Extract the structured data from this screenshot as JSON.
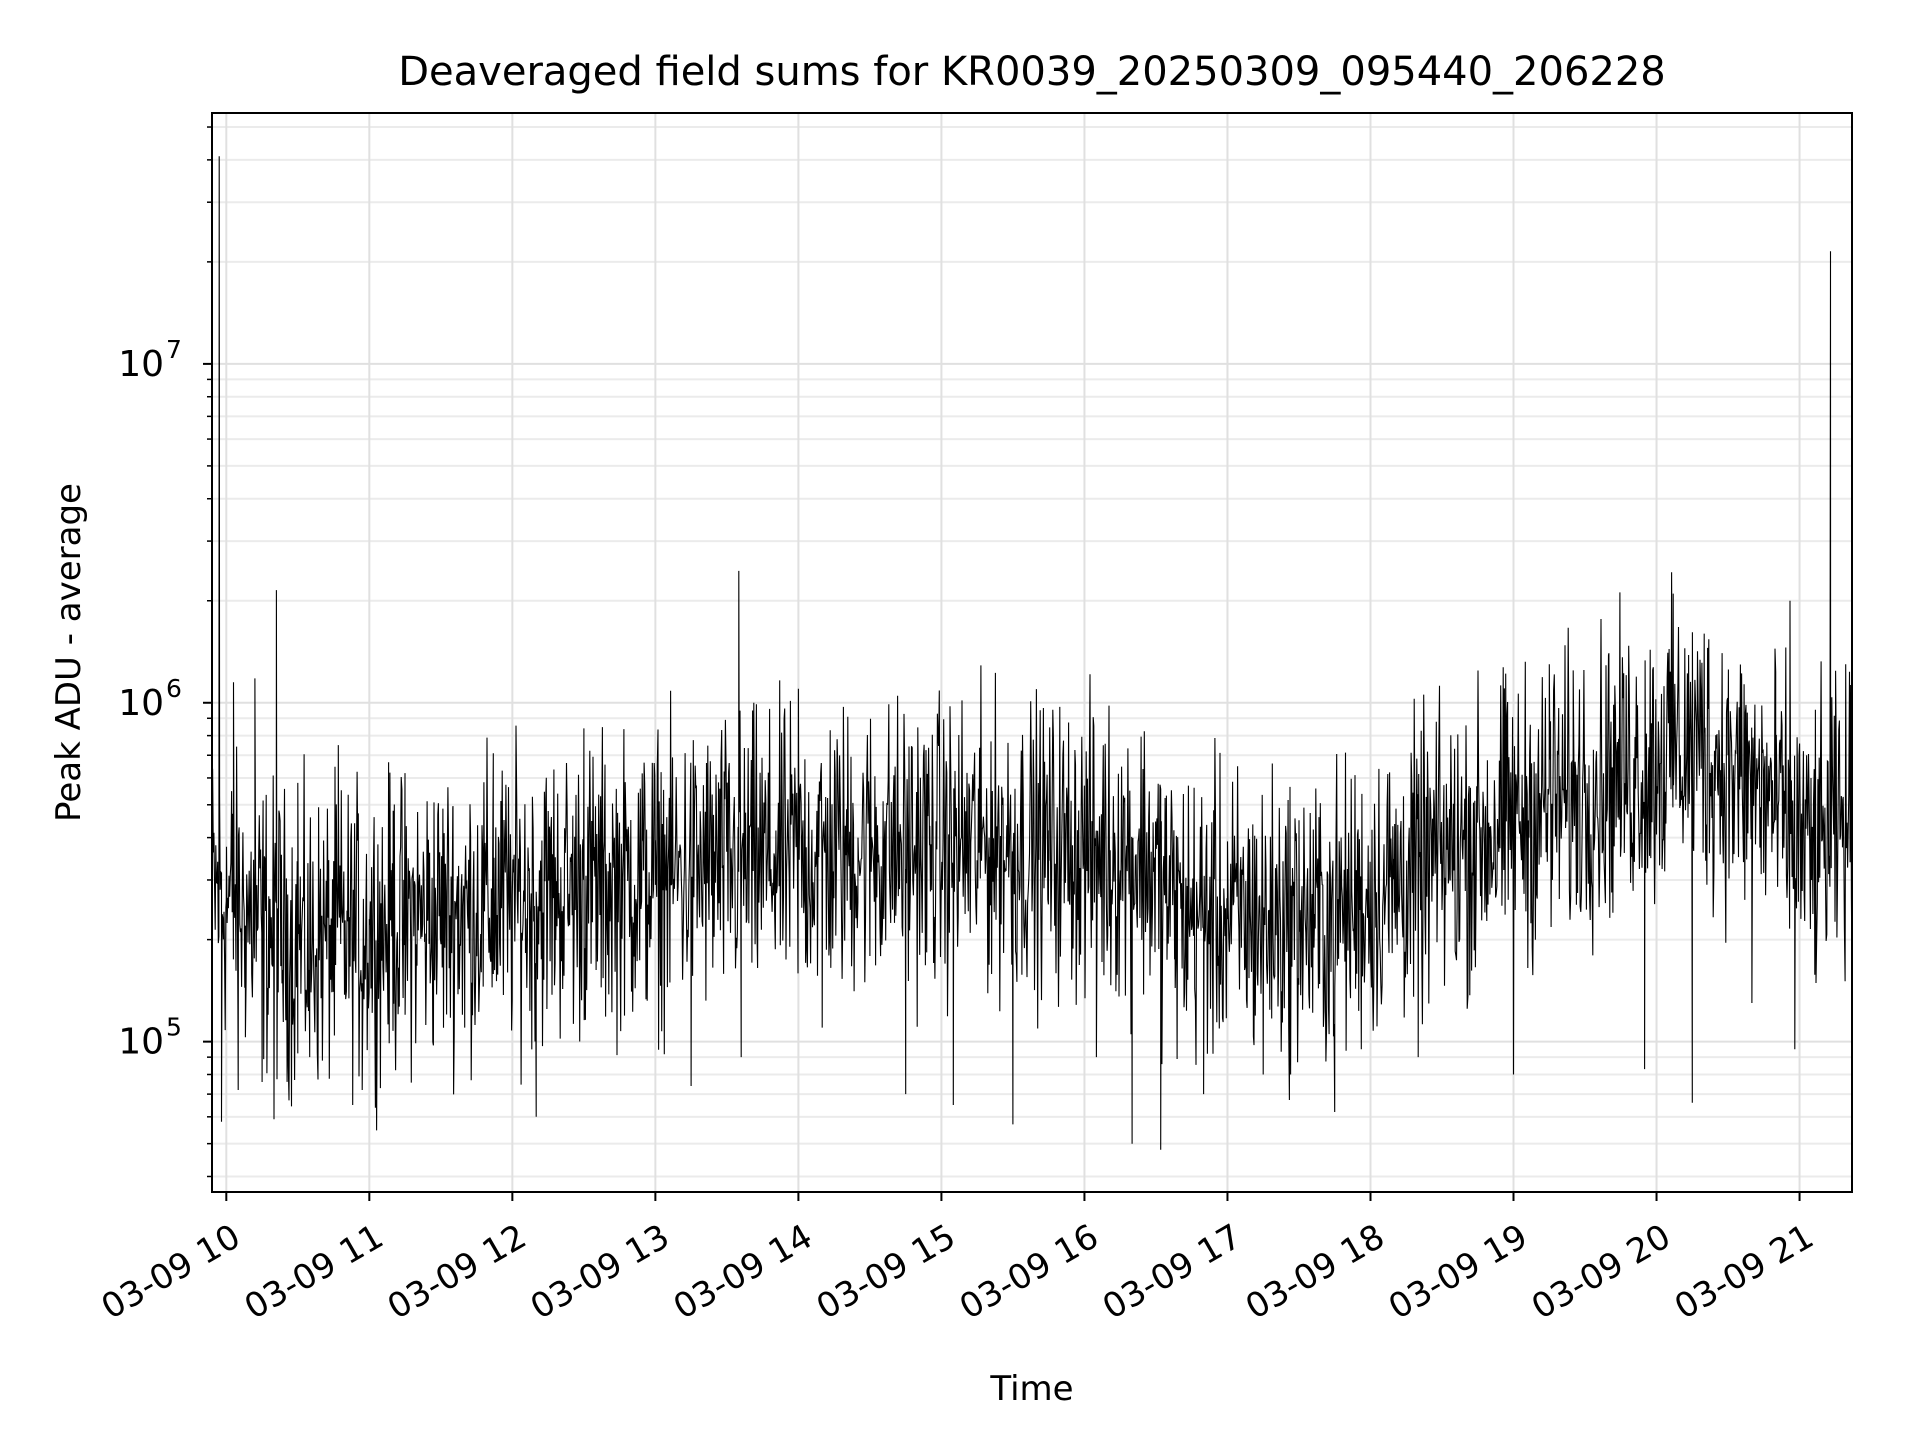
{
  "chart_data": {
    "type": "line",
    "title": "Deaveraged field sums for KR0039_20250309_095440_206228",
    "xlabel": "Time",
    "ylabel": "Peak ADU - average",
    "y_scale": "log",
    "ylim": [
      36000,
      55000000
    ],
    "xlim": [
      "2025-03-09 09:54",
      "2025-03-09 21:22"
    ],
    "grid": true,
    "x_ticks": [
      {
        "t": "2025-03-09 10:00",
        "label": "03-09 10"
      },
      {
        "t": "2025-03-09 11:00",
        "label": "03-09 11"
      },
      {
        "t": "2025-03-09 12:00",
        "label": "03-09 12"
      },
      {
        "t": "2025-03-09 13:00",
        "label": "03-09 13"
      },
      {
        "t": "2025-03-09 14:00",
        "label": "03-09 14"
      },
      {
        "t": "2025-03-09 15:00",
        "label": "03-09 15"
      },
      {
        "t": "2025-03-09 16:00",
        "label": "03-09 16"
      },
      {
        "t": "2025-03-09 17:00",
        "label": "03-09 17"
      },
      {
        "t": "2025-03-09 18:00",
        "label": "03-09 18"
      },
      {
        "t": "2025-03-09 19:00",
        "label": "03-09 19"
      },
      {
        "t": "2025-03-09 20:00",
        "label": "03-09 20"
      },
      {
        "t": "2025-03-09 21:00",
        "label": "03-09 21"
      }
    ],
    "y_ticks": [
      {
        "value": 100000,
        "base": "10",
        "exp": "5"
      },
      {
        "value": 1000000,
        "base": "10",
        "exp": "6"
      },
      {
        "value": 10000000,
        "base": "10",
        "exp": "7"
      }
    ],
    "series": [
      {
        "color": "#000000",
        "points": [
          [
            "2025-03-09 09:54",
            300000
          ],
          [
            "2025-03-09 09:57",
            41000000
          ],
          [
            "2025-03-09 09:58",
            58000
          ],
          [
            "2025-03-09 10:00",
            260000
          ],
          [
            "2025-03-09 10:03",
            1150000
          ],
          [
            "2025-03-09 10:05",
            72000
          ],
          [
            "2025-03-09 10:08",
            220000
          ],
          [
            "2025-03-09 10:12",
            1180000
          ],
          [
            "2025-03-09 10:15",
            76000
          ],
          [
            "2025-03-09 10:18",
            240000
          ],
          [
            "2025-03-09 10:20",
            59000
          ],
          [
            "2025-03-09 10:21",
            2150000
          ],
          [
            "2025-03-09 10:24",
            210000
          ],
          [
            "2025-03-09 10:30",
            580000
          ],
          [
            "2025-03-09 10:35",
            90000
          ],
          [
            "2025-03-09 10:40",
            220000
          ],
          [
            "2025-03-09 10:47",
            750000
          ],
          [
            "2025-03-09 10:53",
            105000
          ],
          [
            "2025-03-09 10:57",
            72000
          ],
          [
            "2025-03-09 11:00",
            230000
          ],
          [
            "2025-03-09 11:10",
            480000
          ],
          [
            "2025-03-09 11:15",
            120000
          ],
          [
            "2025-03-09 11:25",
            260000
          ],
          [
            "2025-03-09 11:35",
            490000
          ],
          [
            "2025-03-09 11:40",
            110000
          ],
          [
            "2025-03-09 11:52",
            710000
          ],
          [
            "2025-03-09 11:58",
            160000
          ],
          [
            "2025-03-09 12:00",
            270000
          ],
          [
            "2025-03-09 12:10",
            60000
          ],
          [
            "2025-03-09 12:18",
            350000
          ],
          [
            "2025-03-09 12:30",
            840000
          ],
          [
            "2025-03-09 12:40",
            180000
          ],
          [
            "2025-03-09 12:55",
            320000
          ],
          [
            "2025-03-09 13:00",
            290000
          ],
          [
            "2025-03-09 13:15",
            74000
          ],
          [
            "2025-03-09 13:30",
            450000
          ],
          [
            "2025-03-09 13:35",
            2450000
          ],
          [
            "2025-03-09 13:36",
            90000
          ],
          [
            "2025-03-09 13:50",
            350000
          ],
          [
            "2025-03-09 14:00",
            1100000
          ],
          [
            "2025-03-09 14:10",
            110000
          ],
          [
            "2025-03-09 14:25",
            400000
          ],
          [
            "2025-03-09 14:45",
            70000
          ],
          [
            "2025-03-09 14:55",
            380000
          ],
          [
            "2025-03-09 15:05",
            65000
          ],
          [
            "2025-03-09 15:20",
            400000
          ],
          [
            "2025-03-09 15:30",
            57000
          ],
          [
            "2025-03-09 15:45",
            420000
          ],
          [
            "2025-03-09 15:55",
            380000
          ],
          [
            "2025-03-09 16:05",
            90000
          ],
          [
            "2025-03-09 16:20",
            50000
          ],
          [
            "2025-03-09 16:25",
            400000
          ],
          [
            "2025-03-09 16:32",
            48000
          ],
          [
            "2025-03-09 16:38",
            280000
          ],
          [
            "2025-03-09 16:50",
            70000
          ],
          [
            "2025-03-09 17:00",
            230000
          ],
          [
            "2025-03-09 17:15",
            80000
          ],
          [
            "2025-03-09 17:30",
            450000
          ],
          [
            "2025-03-09 17:45",
            62000
          ],
          [
            "2025-03-09 17:55",
            170000
          ],
          [
            "2025-03-09 18:10",
            240000
          ],
          [
            "2025-03-09 18:20",
            90000
          ],
          [
            "2025-03-09 18:35",
            320000
          ],
          [
            "2025-03-09 18:50",
            430000
          ],
          [
            "2025-03-09 19:00",
            80000
          ],
          [
            "2025-03-09 19:15",
            1300000
          ],
          [
            "2025-03-09 19:25",
            500000
          ],
          [
            "2025-03-09 19:40",
            1400000
          ],
          [
            "2025-03-09 19:55",
            83000
          ],
          [
            "2025-03-09 20:07",
            2100000
          ],
          [
            "2025-03-09 20:10",
            700000
          ],
          [
            "2025-03-09 20:15",
            66000
          ],
          [
            "2025-03-09 20:20",
            1600000
          ],
          [
            "2025-03-09 20:30",
            700000
          ],
          [
            "2025-03-09 20:40",
            130000
          ],
          [
            "2025-03-09 20:50",
            450000
          ],
          [
            "2025-03-09 20:56",
            2000000
          ],
          [
            "2025-03-09 20:58",
            95000
          ],
          [
            "2025-03-09 21:05",
            300000
          ],
          [
            "2025-03-09 21:13",
            21500000
          ],
          [
            "2025-03-09 21:15",
            350000
          ],
          [
            "2025-03-09 21:22",
            500000
          ]
        ]
      }
    ]
  }
}
